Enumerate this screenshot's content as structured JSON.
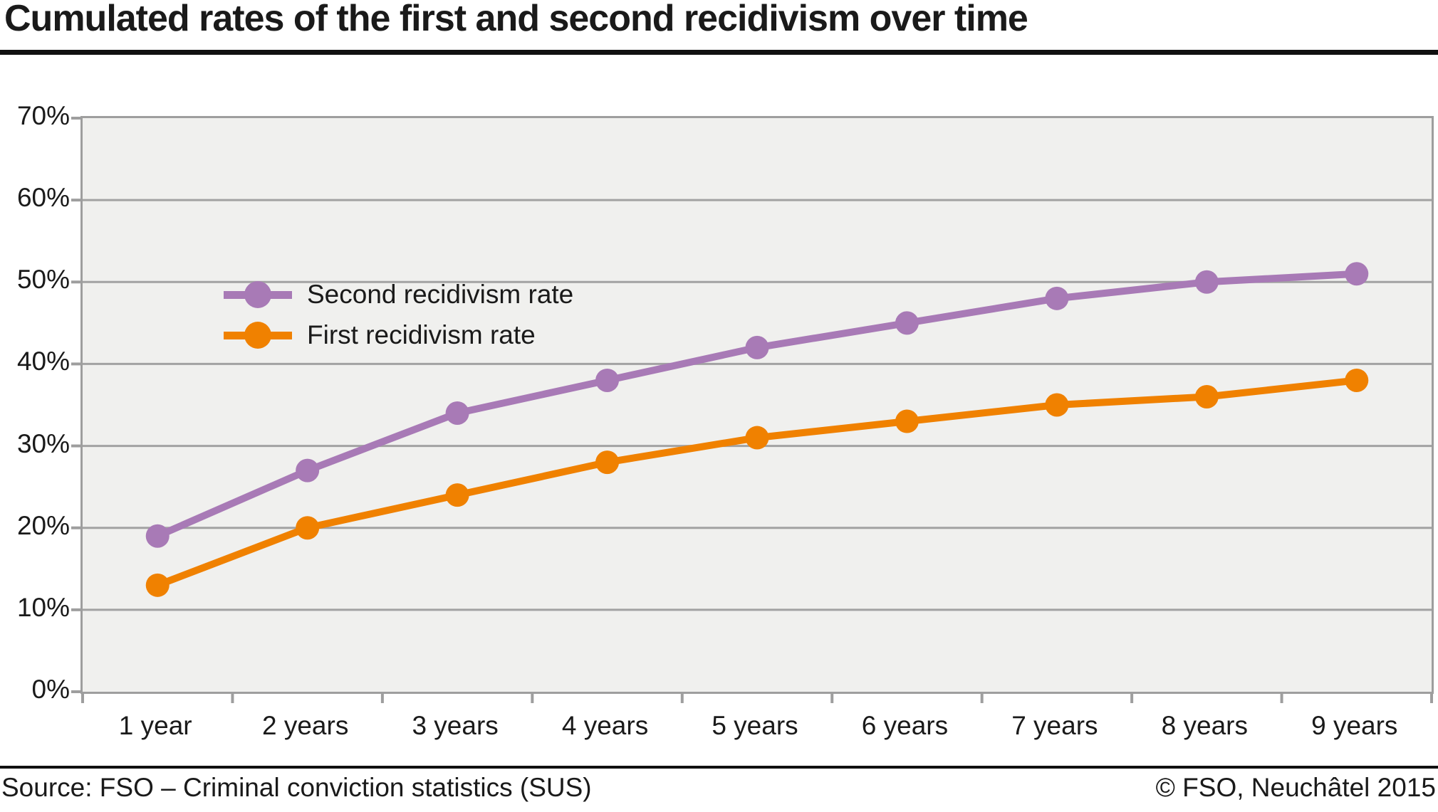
{
  "page": {
    "title": "Cumulated rates of the first and second recidivism over time",
    "footer_left": "Source: FSO – Criminal conviction statistics (SUS)",
    "footer_right": "© FSO, Neuchâtel 2015"
  },
  "colors": {
    "second_recidivism": "#a87ab6",
    "first_recidivism": "#f08100",
    "plot_background": "#f0f0ee",
    "gridline": "#a2a2a2",
    "axis": "#9e9e9e",
    "text": "#1a1a1a",
    "rule": "#111111"
  },
  "chart_data": {
    "type": "line",
    "title": "Cumulated rates of the first and second recidivism over time",
    "categories": [
      "1 year",
      "2 years",
      "3 years",
      "4 years",
      "5 years",
      "6 years",
      "7 years",
      "8 years",
      "9 years"
    ],
    "series": [
      {
        "name": "Second recidivism rate",
        "color_key": "second_recidivism",
        "values": [
          19,
          27,
          34,
          38,
          42,
          45,
          48,
          50,
          51
        ]
      },
      {
        "name": "First recidivism rate",
        "color_key": "first_recidivism",
        "values": [
          13,
          20,
          24,
          28,
          31,
          33,
          35,
          36,
          38
        ]
      }
    ],
    "ylim": [
      0,
      70
    ],
    "ytick_step": 10,
    "ytick_labels": [
      "0%",
      "10%",
      "20%",
      "30%",
      "40%",
      "50%",
      "60%",
      "70%"
    ],
    "xlabel": "",
    "ylabel": "",
    "grid": "horizontal",
    "legend_position": "top-left-inside"
  }
}
